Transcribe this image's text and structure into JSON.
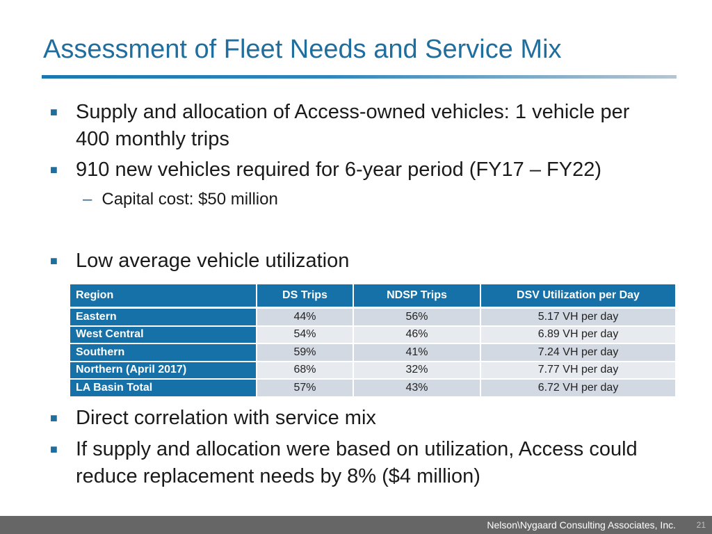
{
  "slide": {
    "title": "Assessment of Fleet Needs and Service Mix"
  },
  "bullets": {
    "marker": "■",
    "b1": "Supply and allocation of Access-owned vehicles: 1 vehicle per 400 monthly trips",
    "b2": "910 new vehicles required for 6-year period (FY17 – FY22)",
    "b2_sub_dash": "–",
    "b2_sub": "Capital cost: $50 million",
    "b3": "Low average vehicle utilization",
    "b4": "Direct correlation with service mix",
    "b5": "If supply and allocation were based on utilization, Access could reduce replacement needs by 8% ($4 million)"
  },
  "table": {
    "headers": [
      "Region",
      "DS Trips",
      "NDSP Trips",
      "DSV Utilization per Day"
    ],
    "rows": [
      [
        "Eastern",
        "44%",
        "56%",
        "5.17 VH per day"
      ],
      [
        "West Central",
        "54%",
        "46%",
        "6.89 VH per day"
      ],
      [
        "Southern",
        "59%",
        "41%",
        "7.24 VH per day"
      ],
      [
        "Northern (April 2017)",
        "68%",
        "32%",
        "7.77 VH per day"
      ],
      [
        "LA Basin Total",
        "57%",
        "43%",
        "6.72 VH per day"
      ]
    ]
  },
  "footer": {
    "company": "Nelson\\Nygaard Consulting Associates, Inc.",
    "page_number": "21"
  },
  "colors": {
    "accent": "#1f6e9e",
    "table_header": "#1571a8",
    "row_a": "#d3d9e2",
    "row_b": "#e7eaef",
    "footer": "#666666"
  }
}
